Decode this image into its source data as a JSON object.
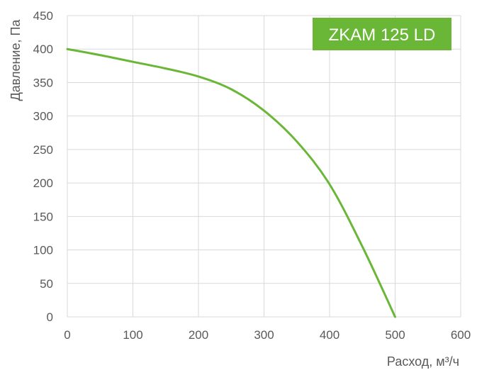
{
  "chart_data": {
    "type": "line",
    "title": "",
    "xlabel": "Расход, м³/ч",
    "ylabel": "Давление, Па",
    "xlim": [
      0,
      600
    ],
    "ylim": [
      0,
      450
    ],
    "xticks": [
      0,
      100,
      200,
      300,
      400,
      500,
      600
    ],
    "yticks": [
      0,
      50,
      100,
      150,
      200,
      250,
      300,
      350,
      400,
      450
    ],
    "grid": true,
    "legend": "none",
    "series": [
      {
        "color": "#6ab636",
        "x": [
          0,
          50,
          100,
          150,
          200,
          250,
          300,
          350,
          400,
          450,
          500
        ],
        "y": [
          400,
          391,
          381,
          371,
          359,
          340,
          308,
          262,
          198,
          105,
          0
        ]
      }
    ],
    "annotations": [
      {
        "text": "ZKAM 125 LD",
        "position": "top-right",
        "background": "#6ab636",
        "color": "#ffffff"
      }
    ]
  },
  "colors": {
    "grid": "#d9d9d9",
    "tick_text": "#595959"
  }
}
